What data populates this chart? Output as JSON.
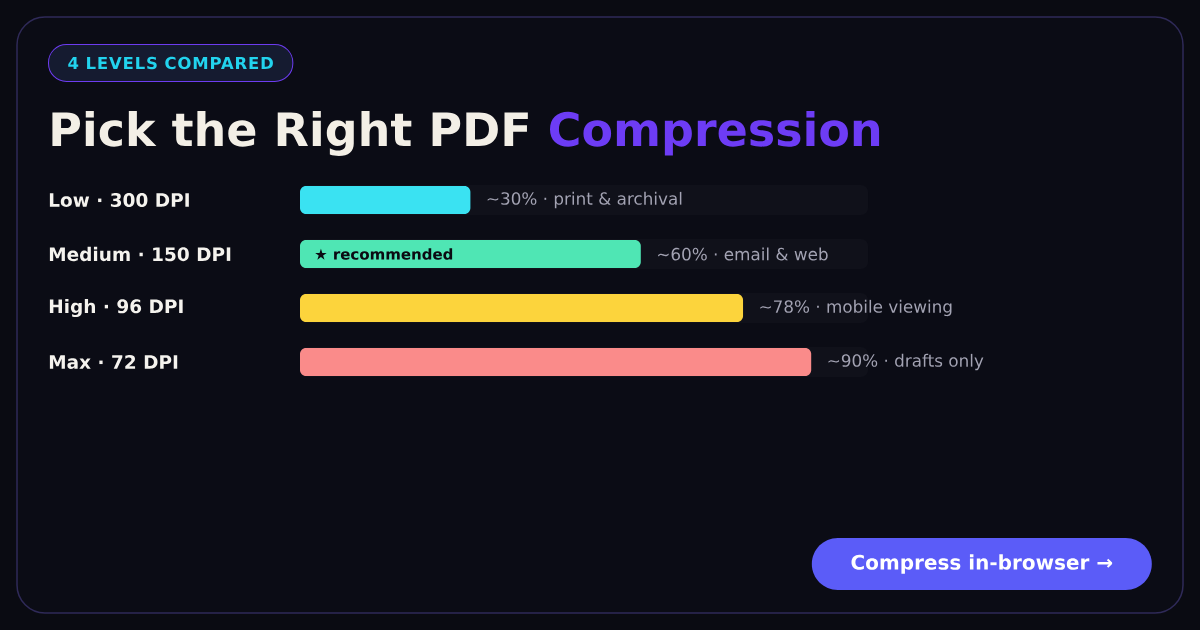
{
  "chart_data": {
    "type": "bar",
    "orientation": "horizontal",
    "subtitle": "4 LEVELS COMPARED",
    "title": "Pick the Right PDF Compression",
    "categories": [
      "Low · 300 DPI",
      "Medium · 150 DPI",
      "High · 96 DPI",
      "Max · 72 DPI"
    ],
    "values": [
      30,
      60,
      78,
      90
    ],
    "colors": [
      "#3ae2f2",
      "#4fe6b4",
      "#fcd43c",
      "#fa8b8a"
    ],
    "value_labels": [
      "~30% · print & archival",
      "~60% · email & web",
      "~78% · mobile viewing",
      "~90% · drafts only"
    ],
    "tick_labels": "y",
    "annotations": [
      "★ recommended",
      "Compress in-browser →"
    ]
  }
}
